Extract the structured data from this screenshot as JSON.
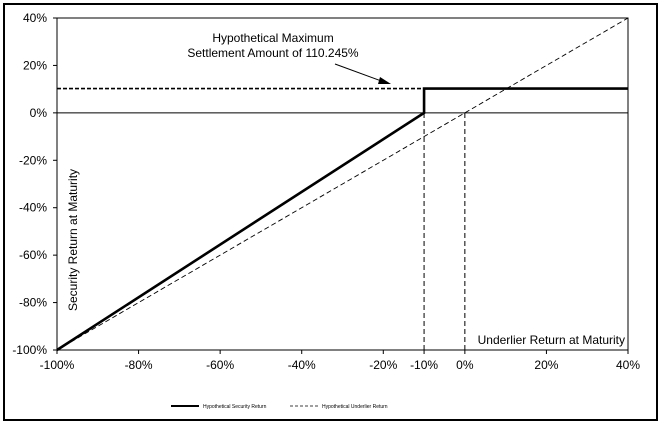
{
  "chart_data": {
    "type": "line",
    "xlabel": "Underlier Return at Maturity",
    "ylabel": "Security Return at Maturity",
    "xlim": [
      -100,
      40
    ],
    "ylim": [
      -100,
      40
    ],
    "x_ticks": [
      "-100%",
      "-80%",
      "-60%",
      "-40%",
      "-20%",
      "-10%",
      "0%",
      "20%",
      "40%"
    ],
    "x_tick_values": [
      -100,
      -80,
      -60,
      -40,
      -20,
      -10,
      0,
      20,
      40
    ],
    "y_ticks": [
      "40%",
      "20%",
      "0%",
      "-20%",
      "-40%",
      "-60%",
      "-80%",
      "-100%"
    ],
    "y_tick_values": [
      40,
      20,
      0,
      -20,
      -40,
      -60,
      -80,
      -100
    ],
    "series": [
      {
        "name": "Hypothetical Security Return",
        "style": "solid-thick",
        "color": "#000000",
        "points": [
          [
            -100,
            -100
          ],
          [
            -10,
            0
          ],
          [
            -10,
            10.245
          ],
          [
            40,
            10.245
          ]
        ]
      },
      {
        "name": "Hypothetical Underlier Return",
        "style": "dashed",
        "color": "#000000",
        "points": [
          [
            -100,
            -100
          ],
          [
            40,
            40
          ]
        ]
      }
    ],
    "reference_lines": [
      {
        "orientation": "horizontal",
        "y": 10.245,
        "x_from": -100,
        "x_to": -10,
        "style": "dashed"
      },
      {
        "orientation": "vertical",
        "x": -10,
        "y_from": -100,
        "y_to": 0,
        "style": "dashed"
      },
      {
        "orientation": "vertical",
        "x": 0,
        "y_from": -100,
        "y_to": 0,
        "style": "dashed"
      },
      {
        "orientation": "horizontal",
        "y": 0,
        "x_from": -100,
        "x_to": 40,
        "style": "solid"
      }
    ],
    "annotation": {
      "lines": [
        "Hypothetical Maximum",
        "Settlement Amount of 110.245%"
      ],
      "points_to": [
        -10,
        10.245
      ]
    },
    "legend": {
      "position": "bottom-left",
      "entries": [
        "Hypothetical Security Return",
        "Hypothetical Underlier Return"
      ]
    }
  }
}
